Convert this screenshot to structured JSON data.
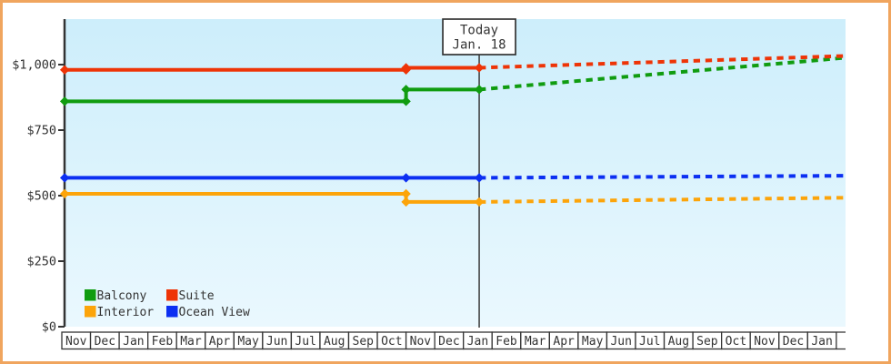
{
  "chart_data": {
    "type": "line",
    "title": "",
    "ylabel": "",
    "xlabel": "",
    "ylim": [
      0,
      1174
    ],
    "grid": false,
    "y_axis": {
      "ticks": [
        {
          "value": 0,
          "label": "$0"
        },
        {
          "value": 250,
          "label": "$250"
        },
        {
          "value": 500,
          "label": "$500"
        },
        {
          "value": 750,
          "label": "$750"
        },
        {
          "value": 1000,
          "label": "$1,000"
        }
      ]
    },
    "x_axis": {
      "months": [
        "Nov",
        "Dec",
        "Jan",
        "Feb",
        "Mar",
        "Apr",
        "May",
        "Jun",
        "Jul",
        "Aug",
        "Sep",
        "Oct",
        "Nov",
        "Dec",
        "Jan",
        "Feb",
        "Mar",
        "Apr",
        "May",
        "Jun",
        "Jul",
        "Aug",
        "Sep",
        "Oct",
        "Nov",
        "Dec",
        "Jan"
      ]
    },
    "today": {
      "label_line1": "Today",
      "label_line2": "Jan. 18",
      "t": 14.55
    },
    "series": [
      {
        "name": "Balcony",
        "color": "#109c10",
        "solid": [
          [
            0.1,
            860
          ],
          [
            12,
            860
          ],
          [
            12,
            905
          ],
          [
            14.55,
            905
          ]
        ],
        "dashed": [
          [
            14.55,
            905
          ],
          [
            27.3,
            1026
          ]
        ]
      },
      {
        "name": "Suite",
        "color": "#ee3407",
        "solid": [
          [
            0.1,
            980
          ],
          [
            12,
            980
          ],
          [
            12,
            988
          ],
          [
            14.55,
            988
          ]
        ],
        "dashed": [
          [
            14.55,
            988
          ],
          [
            27.3,
            1033
          ]
        ]
      },
      {
        "name": "Interior",
        "color": "#fca40a",
        "solid": [
          [
            0.1,
            507
          ],
          [
            12,
            507
          ],
          [
            12,
            476
          ],
          [
            14.55,
            476
          ]
        ],
        "dashed": [
          [
            14.55,
            476
          ],
          [
            27.3,
            492
          ]
        ]
      },
      {
        "name": "Ocean View",
        "color": "#0c2ff2",
        "solid": [
          [
            0.1,
            568
          ],
          [
            12,
            568
          ],
          [
            14.55,
            568
          ]
        ],
        "dashed": [
          [
            14.55,
            568
          ],
          [
            27.3,
            576
          ]
        ]
      }
    ],
    "legend": {
      "rows": [
        [
          "Balcony",
          "Suite"
        ],
        [
          "Interior",
          "Ocean View"
        ]
      ],
      "position": "bottom-left"
    },
    "frame_color": "#f0a55e",
    "plot_bg_top": "#cdeefb",
    "plot_bg_bottom": "#eaf8fe",
    "axis_color": "#333333",
    "text_color": "#333333"
  }
}
